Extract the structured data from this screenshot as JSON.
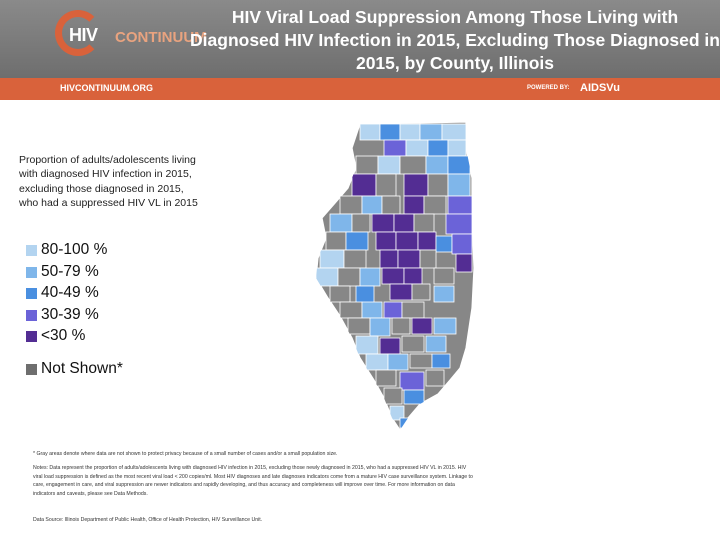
{
  "header": {
    "logo": {
      "hiv": "HIV",
      "continuum": "CONTINUUM"
    },
    "title": "HIV Viral Load Suppression Among Those Living with Diagnosed HIV Infection in 2015, Excluding Those Diagnosed in 2015, by County, Illinois",
    "site_url": "HIVCONTINUUM.ORG",
    "powered_by": "POWERED BY:",
    "partner": "AIDSVu"
  },
  "legend": {
    "title": "Proportion of adults/adolescents living with diagnosed HIV infection in 2015, excluding those diagnosed in 2015, who had a suppressed HIV VL in 2015",
    "items": [
      {
        "label": "80-100 %",
        "color": "#b3d4f0"
      },
      {
        "label": "50-79 %",
        "color": "#7fb6ea"
      },
      {
        "label": "40-49 %",
        "color": "#4a8fe0"
      },
      {
        "label": "30-39 %",
        "color": "#6b63d8"
      },
      {
        "label": "<30 %",
        "color": "#532d93"
      }
    ],
    "not_shown": {
      "label": "Not Shown*",
      "color": "#6e6e6e"
    }
  },
  "map": {
    "base_color": "#878787",
    "border_color": "#ffffff"
  },
  "notes": {
    "footnote": "* Gray areas denote where data are not shown to protect privacy because of a small number of cases and/or a small population size.",
    "notes": "Notes: Data represent the proportion of adults/adolescents living with diagnosed HIV infection in 2015, excluding those newly diagnosed in 2015, who had a suppressed HIV VL in 2015. HIV viral load suppression is defined as the most recent viral load < 200 copies/ml. Most HIV diagnoses and late diagnoses indicators come from a mature HIV case surveillance system. Linkage to care, engagement in care, and viral suppression are newer indicators and rapidly developing, and thus accuracy and completeness will improve over time. For more information on data indicators and caveats, please see Data Methods.",
    "source": "Data Source: Illinois Department of Public Health, Office of Health Protection, HIV Surveillance Unit."
  }
}
